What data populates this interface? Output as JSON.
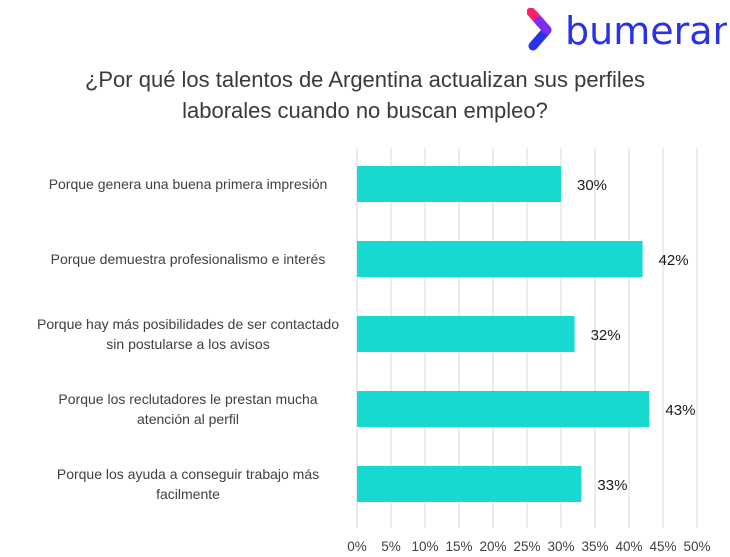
{
  "brand": {
    "name": "bumeran",
    "logo_color": "#2a32e8",
    "mark_colors": [
      "#ff1f6e",
      "#7a2cf0",
      "#2a32e8"
    ]
  },
  "title_lines": [
    "¿Por qué los talentos de Argentina actualizan sus perfiles",
    "laborales cuando no buscan empleo?"
  ],
  "chart_data": {
    "type": "bar",
    "orientation": "horizontal",
    "title": "¿Por qué los talentos de Argentina actualizan sus perfiles laborales cuando no buscan empleo?",
    "categories": [
      [
        "Porque genera una buena primera impresión"
      ],
      [
        "Porque demuestra profesionalismo e interés"
      ],
      [
        "Porque hay más posibilidades de ser contactado",
        "sin postularse a los avisos"
      ],
      [
        "Porque los reclutadores le prestan mucha",
        "atención al perfil"
      ],
      [
        "Porque los ayuda a conseguir trabajo más",
        "facilmente"
      ]
    ],
    "values": [
      30,
      42,
      32,
      43,
      33
    ],
    "value_labels": [
      "30%",
      "42%",
      "32%",
      "43%",
      "33%"
    ],
    "xlim": [
      0,
      50
    ],
    "x_ticks": [
      "0%",
      "5%",
      "10%",
      "15%",
      "20%",
      "25%",
      "30%",
      "35%",
      "40%",
      "45%",
      "50%"
    ],
    "grid": true,
    "bar_color": "#17d9cf",
    "grid_color": "#d9d9d9"
  }
}
